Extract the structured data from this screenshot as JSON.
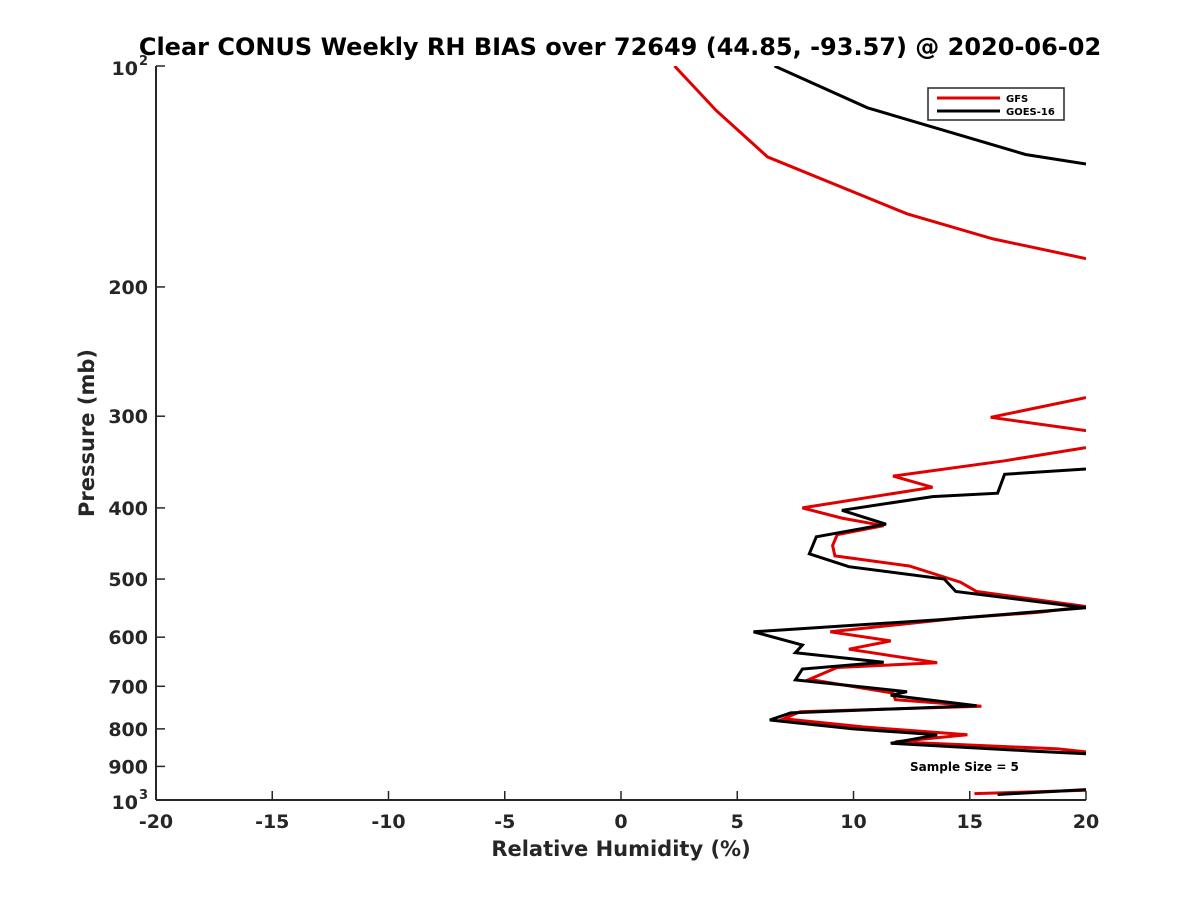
{
  "chart_data": {
    "type": "line",
    "title": "Clear CONUS Weekly RH BIAS over 72649 (44.85, -93.57) @ 2020-06-02",
    "xlabel": "Relative Humidity (%)",
    "ylabel": "Pressure (mb)",
    "xlim": [
      -20,
      20
    ],
    "ylim": [
      100,
      1000
    ],
    "y_scale": "log",
    "y_reversed": true,
    "grid": false,
    "legend_position": "top-right",
    "x_ticks": [
      "-20",
      "-15",
      "-10",
      "-5",
      "0",
      "5",
      "10",
      "15",
      "20"
    ],
    "y_ticks": [
      {
        "value": 100,
        "base": "10",
        "exp": "2"
      },
      {
        "value": 200,
        "label": "200"
      },
      {
        "value": 300,
        "label": "300"
      },
      {
        "value": 400,
        "label": "400"
      },
      {
        "value": 500,
        "label": "500"
      },
      {
        "value": 600,
        "label": "600"
      },
      {
        "value": 700,
        "label": "700"
      },
      {
        "value": 800,
        "label": "800"
      },
      {
        "value": 900,
        "label": "900"
      },
      {
        "value": 1000,
        "base": "10",
        "exp": "3"
      }
    ],
    "annotation": "Sample Size = 5",
    "series": [
      {
        "name": "GFS",
        "color": "#e00000",
        "segments": [
          [
            [
              2.3,
              100
            ],
            [
              4.1,
              115
            ],
            [
              6.3,
              133
            ],
            [
              12.3,
              159
            ],
            [
              16.0,
              172
            ],
            [
              20.0,
              183
            ]
          ],
          [
            [
              20.0,
              283
            ],
            [
              15.9,
              301
            ],
            [
              20.0,
              314
            ]
          ],
          [
            [
              20.0,
              331
            ],
            [
              16.5,
              345
            ],
            [
              11.7,
              362
            ],
            [
              13.4,
              375
            ],
            [
              7.8,
              400
            ],
            [
              9.5,
              413
            ],
            [
              11.3,
              423
            ],
            [
              9.3,
              435
            ],
            [
              9.1,
              450
            ],
            [
              9.2,
              465
            ],
            [
              12.4,
              480
            ],
            [
              14.6,
              505
            ],
            [
              15.3,
              520
            ],
            [
              20.0,
              545
            ],
            [
              18.0,
              555
            ],
            [
              14.6,
              565
            ],
            [
              9.0,
              590
            ],
            [
              11.6,
              607
            ],
            [
              9.8,
              623
            ],
            [
              13.6,
              650
            ],
            [
              9.3,
              660
            ],
            [
              8.1,
              685
            ],
            [
              11.7,
              715
            ],
            [
              11.8,
              730
            ],
            [
              15.5,
              745
            ],
            [
              7.7,
              758
            ],
            [
              7.0,
              775
            ],
            [
              10.4,
              795
            ],
            [
              14.9,
              815
            ],
            [
              11.8,
              833
            ],
            [
              18.8,
              852
            ],
            [
              20.0,
              860
            ]
          ],
          [
            [
              15.2,
              980
            ],
            [
              20.0,
              970
            ]
          ]
        ]
      },
      {
        "name": "GOES-16",
        "color": "#000000",
        "segments": [
          [
            [
              6.6,
              100
            ],
            [
              10.6,
              114
            ],
            [
              17.4,
              132
            ],
            [
              20.0,
              136
            ]
          ],
          [
            [
              20.0,
              354
            ],
            [
              16.5,
              360
            ],
            [
              16.2,
              382
            ],
            [
              13.4,
              386
            ],
            [
              9.5,
              403
            ],
            [
              11.4,
              421
            ],
            [
              8.4,
              438
            ],
            [
              8.1,
              462
            ],
            [
              9.8,
              481
            ],
            [
              13.9,
              500
            ],
            [
              14.4,
              520
            ],
            [
              20.0,
              547
            ],
            [
              13.7,
              568
            ],
            [
              5.7,
              590
            ],
            [
              7.8,
              615
            ],
            [
              7.5,
              630
            ],
            [
              11.3,
              649
            ],
            [
              7.8,
              663
            ],
            [
              7.5,
              686
            ],
            [
              12.3,
              712
            ],
            [
              11.6,
              720
            ],
            [
              15.3,
              744
            ],
            [
              7.3,
              761
            ],
            [
              6.4,
              778
            ],
            [
              10.0,
              800
            ],
            [
              13.6,
              815
            ],
            [
              11.6,
              837
            ],
            [
              17.8,
              858
            ],
            [
              20.0,
              865
            ]
          ],
          [
            [
              16.2,
              983
            ],
            [
              20.0,
              968
            ]
          ]
        ]
      }
    ]
  }
}
